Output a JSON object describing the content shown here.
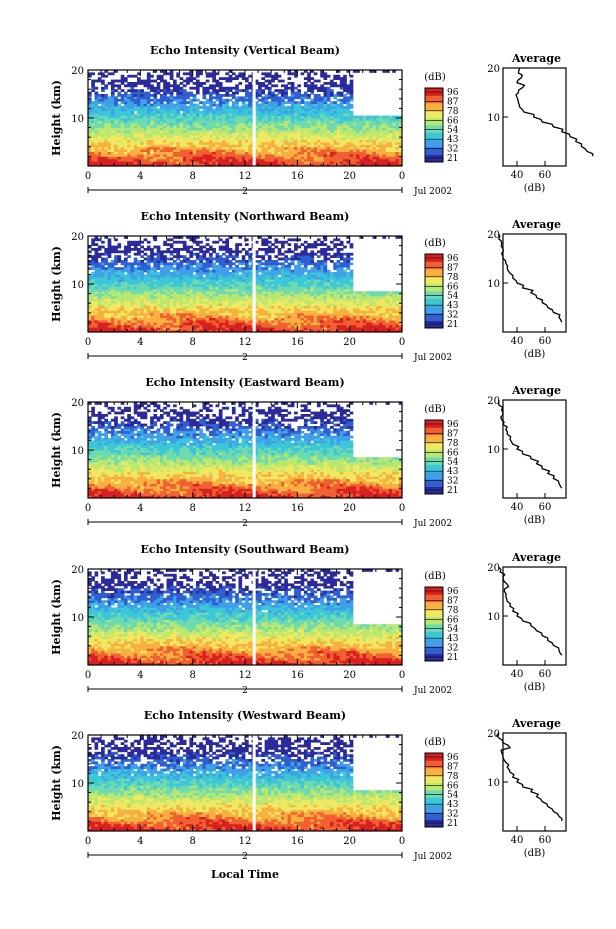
{
  "chart_data": {
    "type": "heatmap",
    "panels": [
      {
        "title": "Echo Intensity (Vertical Beam)",
        "profile": [
          [
            2,
            94
          ],
          [
            3,
            90
          ],
          [
            4,
            86
          ],
          [
            5,
            82
          ],
          [
            6,
            78
          ],
          [
            7,
            72
          ],
          [
            8,
            66
          ],
          [
            9,
            58
          ],
          [
            10,
            52
          ],
          [
            11,
            45
          ],
          [
            12,
            42
          ],
          [
            13,
            41
          ],
          [
            14,
            40
          ],
          [
            15,
            41
          ],
          [
            16,
            44
          ],
          [
            17,
            40
          ],
          [
            18,
            43
          ],
          [
            19,
            41
          ],
          [
            20,
            42
          ]
        ]
      },
      {
        "title": "Echo Intensity (Northward Beam)",
        "profile": [
          [
            2,
            72
          ],
          [
            3,
            70
          ],
          [
            4,
            66
          ],
          [
            5,
            62
          ],
          [
            6,
            58
          ],
          [
            7,
            54
          ],
          [
            8,
            50
          ],
          [
            9,
            44
          ],
          [
            10,
            40
          ],
          [
            11,
            37
          ],
          [
            12,
            35
          ],
          [
            13,
            33
          ],
          [
            14,
            32
          ],
          [
            15,
            30
          ],
          [
            16,
            29
          ],
          [
            17,
            30
          ],
          [
            18,
            29
          ],
          [
            19,
            27
          ],
          [
            20,
            27
          ]
        ]
      },
      {
        "title": "Echo Intensity (Eastward Beam)",
        "profile": [
          [
            2,
            72
          ],
          [
            3,
            70
          ],
          [
            4,
            66
          ],
          [
            5,
            62
          ],
          [
            6,
            58
          ],
          [
            7,
            54
          ],
          [
            8,
            50
          ],
          [
            9,
            44
          ],
          [
            10,
            40
          ],
          [
            11,
            37
          ],
          [
            12,
            35
          ],
          [
            13,
            33
          ],
          [
            14,
            32
          ],
          [
            15,
            30
          ],
          [
            16,
            29
          ],
          [
            17,
            30
          ],
          [
            18,
            29
          ],
          [
            19,
            27
          ],
          [
            20,
            27
          ]
        ]
      },
      {
        "title": "Echo Intensity (Southward Beam)",
        "profile": [
          [
            2,
            72
          ],
          [
            3,
            70
          ],
          [
            4,
            66
          ],
          [
            5,
            62
          ],
          [
            6,
            58
          ],
          [
            7,
            54
          ],
          [
            8,
            50
          ],
          [
            9,
            44
          ],
          [
            10,
            40
          ],
          [
            11,
            37
          ],
          [
            12,
            35
          ],
          [
            13,
            33
          ],
          [
            14,
            32
          ],
          [
            15,
            31
          ],
          [
            16,
            34
          ],
          [
            17,
            31
          ],
          [
            18,
            30
          ],
          [
            19,
            28
          ],
          [
            20,
            27
          ]
        ]
      },
      {
        "title": "Echo Intensity (Westward Beam)",
        "profile": [
          [
            2,
            72
          ],
          [
            3,
            70
          ],
          [
            4,
            66
          ],
          [
            5,
            62
          ],
          [
            6,
            58
          ],
          [
            7,
            54
          ],
          [
            8,
            50
          ],
          [
            9,
            44
          ],
          [
            10,
            40
          ],
          [
            11,
            37
          ],
          [
            12,
            35
          ],
          [
            13,
            33
          ],
          [
            14,
            32
          ],
          [
            15,
            30
          ],
          [
            16,
            29
          ],
          [
            17,
            35
          ],
          [
            18,
            30
          ],
          [
            19,
            27
          ],
          [
            20,
            27
          ]
        ]
      }
    ],
    "ylabel": "Height (km)",
    "yticks": [
      "10",
      "20"
    ],
    "ylim": [
      0,
      20
    ],
    "xticks": [
      "0",
      "4",
      "8",
      "12",
      "16",
      "20",
      "0"
    ],
    "xlim": [
      0,
      24
    ],
    "day_label": "2",
    "date_label": "Jul 2002",
    "xlabel": "Local Time",
    "colorbar": {
      "unit": "(dB)",
      "labels": [
        "96",
        "87",
        "78",
        "66",
        "54",
        "43",
        "32",
        "21"
      ],
      "colors": [
        "#2a2a9a",
        "#2f5fd0",
        "#3fa0e8",
        "#3cc7d8",
        "#6fdab0",
        "#b8e870",
        "#f0e860",
        "#f8b040",
        "#f06030",
        "#d82020"
      ]
    },
    "profile_title": "Average",
    "profile_xticks": [
      [
        "40",
        "60"
      ],
      [
        "40",
        "60"
      ],
      [
        "40",
        "60"
      ],
      [
        "40",
        "60"
      ],
      [
        "40",
        "60"
      ]
    ],
    "profile_xlabel": "(dB)"
  }
}
